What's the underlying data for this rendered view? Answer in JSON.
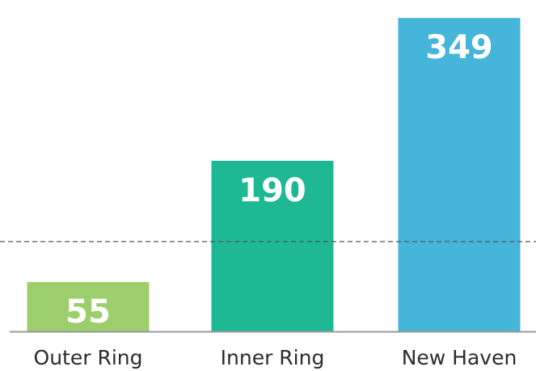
{
  "chart_data": {
    "type": "bar",
    "categories": [
      "Outer Ring",
      "Inner Ring",
      "New Haven"
    ],
    "values": [
      55,
      190,
      349
    ],
    "data_labels": [
      "55",
      "190",
      "349"
    ],
    "colors": [
      "#9ccf6c",
      "#1fb894",
      "#45b5d9"
    ],
    "reference_line": {
      "value": 100,
      "style": "dashed",
      "color": "#555555"
    },
    "baseline_color": "#9a9a9a",
    "grid": false,
    "ylim": [
      0,
      360
    ]
  }
}
